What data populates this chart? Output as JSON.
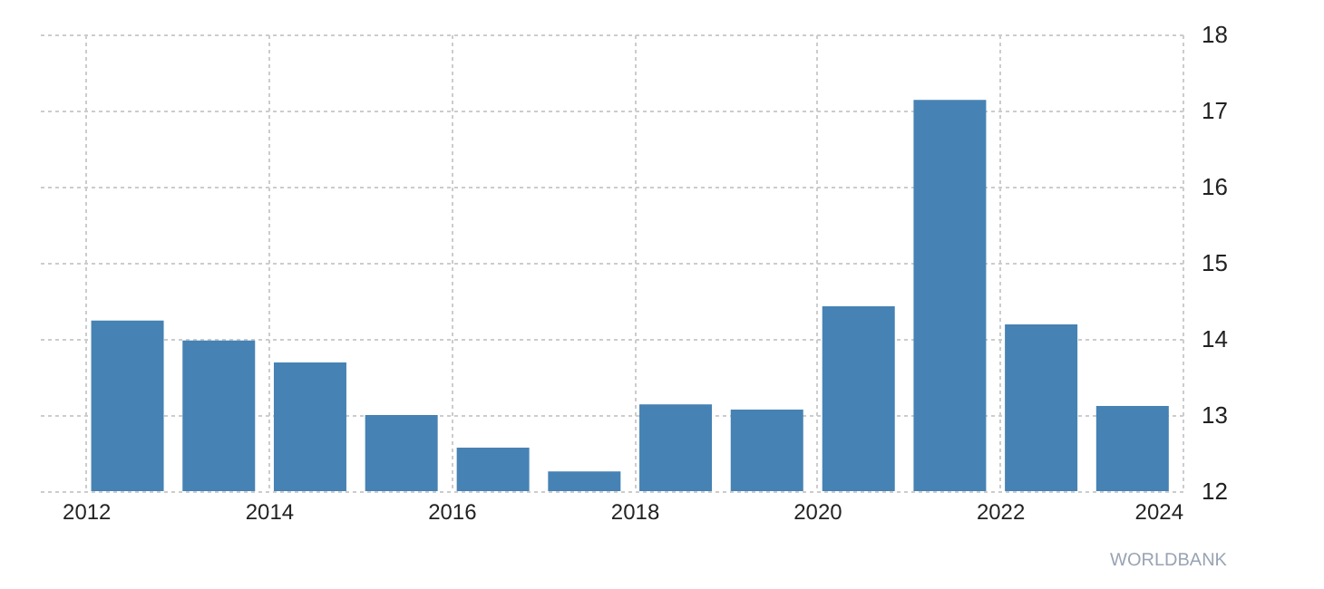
{
  "chart_data": {
    "type": "bar",
    "x": [
      "2012-06-15",
      "2013-06-15",
      "2014-06-15",
      "2015-06-15",
      "2016-06-15",
      "2017-06-15",
      "2018-06-15",
      "2019-06-15",
      "2020-06-15",
      "2021-06-15",
      "2022-06-15",
      "2023-06-15"
    ],
    "values": [
      14.24,
      13.98,
      13.69,
      13.0,
      12.57,
      12.26,
      13.14,
      13.07,
      14.43,
      17.14,
      14.19,
      13.12
    ],
    "color": "#4682b4",
    "xlim": [
      "2011-07-01",
      "2024-01-01"
    ],
    "xticks": [
      "2012",
      "2014",
      "2016",
      "2018",
      "2020",
      "2022",
      "2024"
    ],
    "ylim": [
      12,
      18
    ],
    "yticks": [
      12,
      13,
      14,
      15,
      16,
      17,
      18
    ],
    "grid": true,
    "annotations": [
      "WORLDBANK"
    ]
  }
}
